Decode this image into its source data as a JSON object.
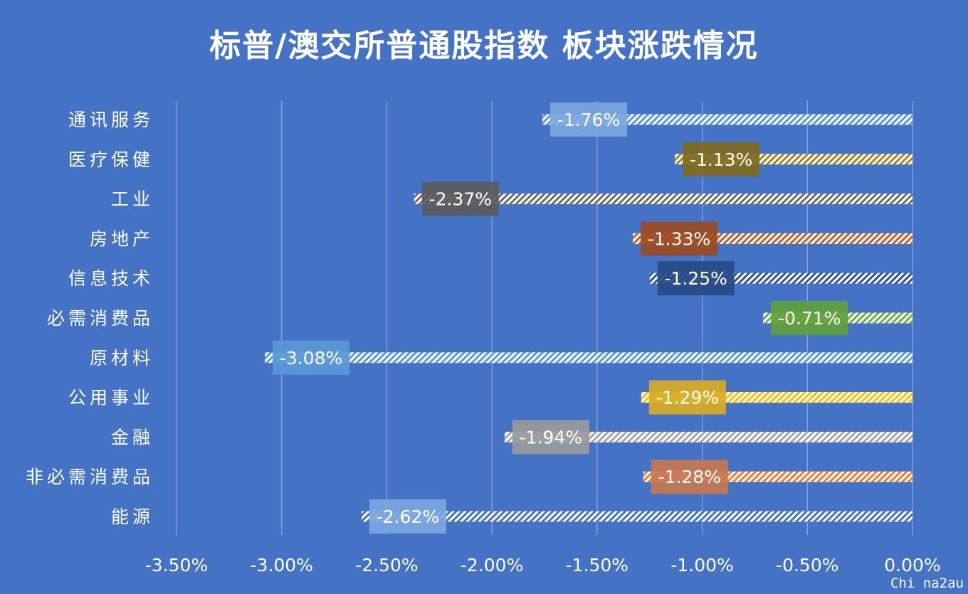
{
  "title": "标普/澳交所普通股指数 板块涨跌情况",
  "watermark": "Chi na2au",
  "chart_data": {
    "type": "bar",
    "orientation": "horizontal",
    "categories": [
      "通讯服务",
      "医疗保健",
      "工业",
      "房地产",
      "信息技术",
      "必需消费品",
      "原材料",
      "公用事业",
      "金融",
      "非必需消费品",
      "能源"
    ],
    "values": [
      -1.76,
      -1.13,
      -2.37,
      -1.33,
      -1.25,
      -0.71,
      -3.08,
      -1.29,
      -1.94,
      -1.28,
      -2.62
    ],
    "data_labels": [
      "-1.76%",
      "-1.13%",
      "-2.37%",
      "-1.33%",
      "-1.25%",
      "-0.71%",
      "-3.08%",
      "-1.29%",
      "-1.94%",
      "-1.28%",
      "-2.62%"
    ],
    "bar_colors": [
      "#5b9bd5",
      "#a08a24",
      "#6c6c6c",
      "#c0602a",
      "#2f5597",
      "#70ad47",
      "#5b9bd5",
      "#ffc000",
      "#a5a5a5",
      "#ed7d31",
      "#4472c4"
    ],
    "label_box_colors": [
      "#7ba7e0",
      "#7f6a1e",
      "#5b5b5b",
      "#9c4a22",
      "#264a86",
      "#5fa13a",
      "#5a98d8",
      "#d9ab23",
      "#9a9a9a",
      "#c77650",
      "#7ba7e0"
    ],
    "x_ticks": [
      -3.5,
      -3.0,
      -2.5,
      -2.0,
      -1.5,
      -1.0,
      -0.5,
      0.0
    ],
    "x_tick_labels": [
      "-3.50%",
      "-3.00%",
      "-2.50%",
      "-2.00%",
      "-1.50%",
      "-1.00%",
      "-0.50%",
      "0.00%"
    ],
    "xlim": [
      -3.5,
      0.0
    ],
    "grid": true,
    "bar_pattern": "diagonal-hatch",
    "colors": {
      "background": "#4472c4",
      "grid": "#8fa9dc",
      "text": "#ffffff"
    }
  }
}
